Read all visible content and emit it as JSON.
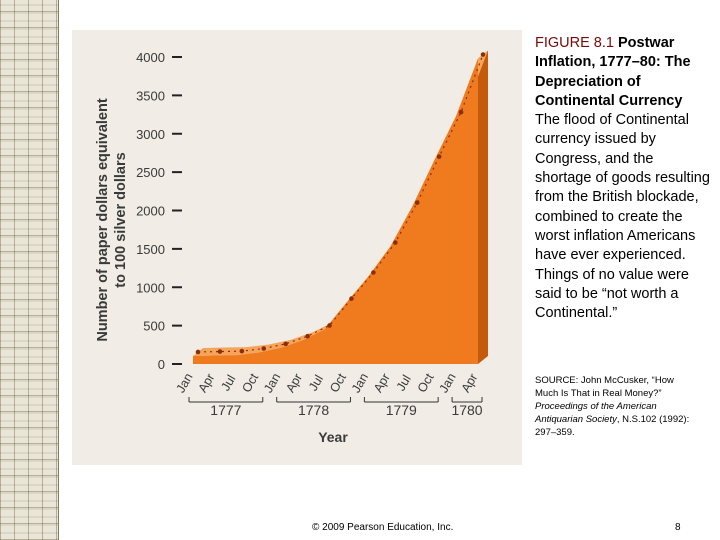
{
  "caption": {
    "figure_label": "FIGURE 8.1",
    "title": "Postwar Inflation, 1777–80: The Depreciation of Continental Currency",
    "body": "The flood of Continental currency issued by Congress, and the shortage of goods resulting from the British blockade, combined to create the worst inflation Americans have ever experienced. Things of no value were said to be “not worth a Continental.”"
  },
  "source": {
    "prefix": "SOURCE: John McCusker, “How Much Is That in Real Money?”",
    "journal": "Proceedings of the American Antiquarian Society",
    "suffix": ", N.S.102 (1992): 297–359."
  },
  "footer": {
    "copyright": "© 2009 Pearson Education, Inc.",
    "page_number": "8"
  },
  "colors": {
    "fill": "#f07a1e",
    "fill_light": "#f6a45a",
    "side": "#c35a0c",
    "line": "#8a2e0b",
    "panel": "#f1ede6",
    "axis_text": "#3a3a3a"
  },
  "chart_data": {
    "type": "area",
    "xlabel": "Year",
    "ylabel": "Number of paper dollars equivalent to 100 silver dollars",
    "ylim": [
      0,
      4000
    ],
    "yticks": [
      "0",
      "500",
      "1000",
      "1500",
      "2000",
      "2500",
      "3000",
      "3500",
      "4000"
    ],
    "x": [
      "Jan",
      "Apr",
      "Jul",
      "Oct",
      "Jan",
      "Apr",
      "Jul",
      "Oct",
      "Jan",
      "Apr",
      "Jul",
      "Oct",
      "Jan",
      "Apr"
    ],
    "years": [
      {
        "label": "1777",
        "span": [
          0,
          3
        ]
      },
      {
        "label": "1778",
        "span": [
          4,
          7
        ]
      },
      {
        "label": "1779",
        "span": [
          8,
          11
        ]
      },
      {
        "label": "1780",
        "span": [
          12,
          13
        ]
      }
    ],
    "values": [
      105,
      110,
      115,
      150,
      210,
      310,
      450,
      800,
      1140,
      1530,
      2050,
      2650,
      3230,
      3980
    ],
    "grid": false,
    "legend": "none"
  }
}
